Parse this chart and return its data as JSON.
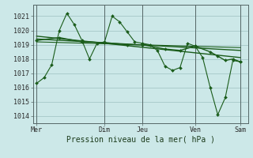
{
  "background_color": "#cce8e8",
  "grid_color": "#aacccc",
  "line_color": "#1a5c1a",
  "ylabel_ticks": [
    1014,
    1015,
    1016,
    1017,
    1018,
    1019,
    1020,
    1021
  ],
  "xlabel": "Pression niveau de la mer( hPa )",
  "x_tick_labels": [
    "Mer",
    "Dim",
    "Jeu",
    "Ven",
    "Sam"
  ],
  "x_tick_positions": [
    0,
    9,
    14,
    21,
    27
  ],
  "xlim": [
    -0.5,
    28
  ],
  "ylim": [
    1013.5,
    1021.8
  ],
  "series1_x": [
    0,
    1,
    2,
    3,
    4,
    5,
    6,
    7,
    8,
    9,
    10,
    11,
    12,
    13,
    14,
    15,
    16,
    17,
    18,
    19,
    20,
    21,
    22,
    23,
    24,
    25,
    26,
    27
  ],
  "series1_y": [
    1016.3,
    1016.7,
    1017.6,
    1020.0,
    1021.2,
    1020.4,
    1019.3,
    1018.0,
    1019.1,
    1019.2,
    1021.0,
    1020.6,
    1019.9,
    1019.2,
    1019.1,
    1019.0,
    1018.6,
    1017.5,
    1017.2,
    1017.4,
    1019.1,
    1018.9,
    1018.1,
    1016.0,
    1014.1,
    1015.3,
    1017.9,
    1017.8
  ],
  "trend1_x": [
    0,
    27
  ],
  "trend1_y": [
    1019.4,
    1018.6
  ],
  "trend2_x": [
    0,
    27
  ],
  "trend2_y": [
    1019.6,
    1018.1
  ],
  "trend3_x": [
    0,
    27
  ],
  "trend3_y": [
    1019.2,
    1018.8
  ],
  "smooth_x": [
    0,
    3,
    6,
    9,
    12,
    14,
    17,
    19,
    21,
    23,
    24,
    25,
    26,
    27
  ],
  "smooth_y": [
    1019.3,
    1019.5,
    1019.2,
    1019.15,
    1019.0,
    1019.0,
    1018.7,
    1018.6,
    1018.9,
    1018.5,
    1018.2,
    1017.9,
    1018.0,
    1017.8
  ]
}
